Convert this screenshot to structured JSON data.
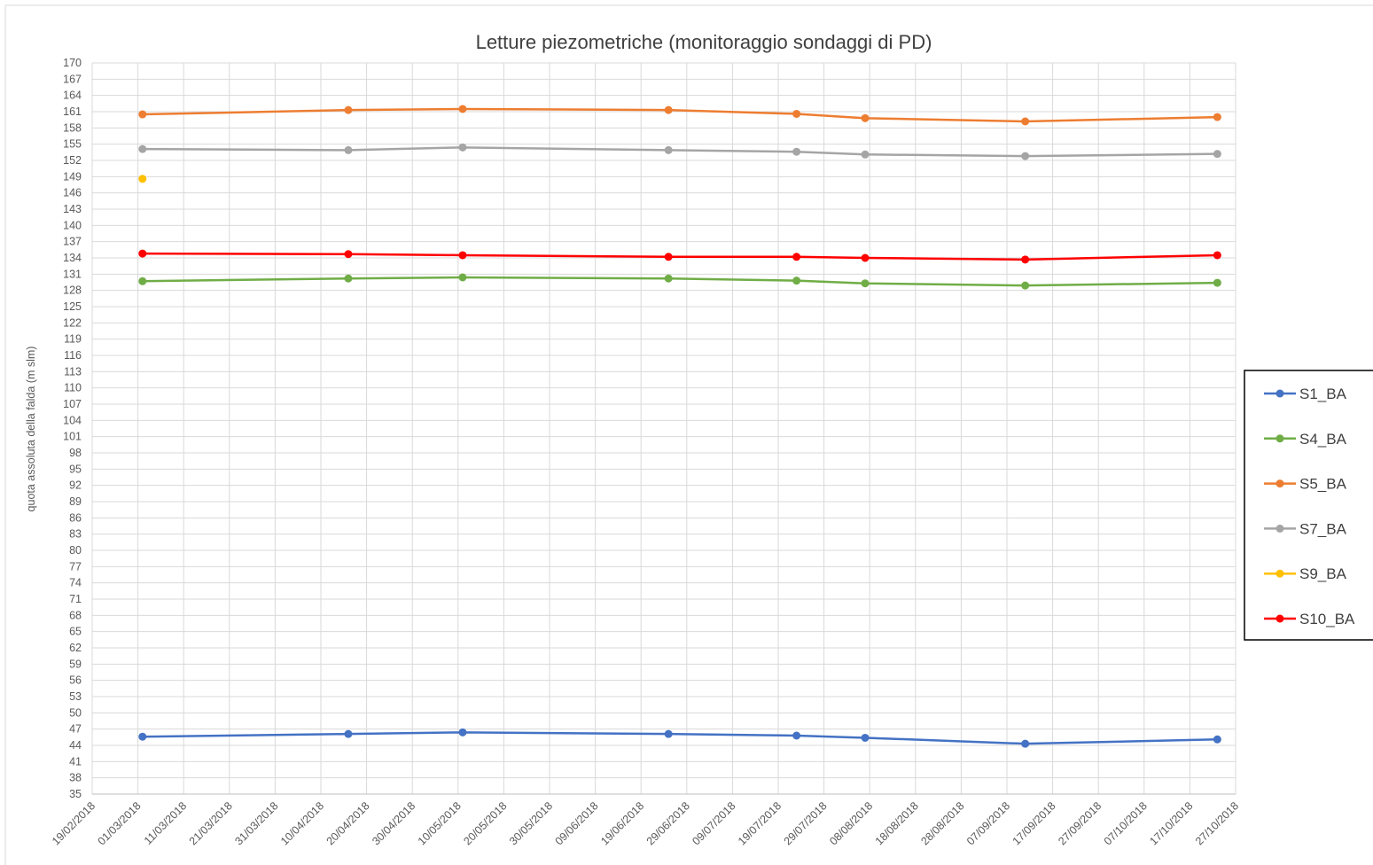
{
  "chart_data": {
    "type": "line",
    "title": "Letture piezometriche (monitoraggio sondaggi di PD)",
    "y_label": "quota assoluta della falda (m slm)",
    "x": [
      "02/03/2018",
      "16/04/2018",
      "11/05/2018",
      "25/06/2018",
      "23/07/2018",
      "07/08/2018",
      "11/09/2018",
      "23/10/2018"
    ],
    "series": [
      {
        "name": "S1_BA",
        "color": "#4472c4",
        "values": [
          45.6,
          46.1,
          46.4,
          46.1,
          45.8,
          45.4,
          44.3,
          45.1
        ]
      },
      {
        "name": "S4_BA",
        "color": "#70ad47",
        "values": [
          129.7,
          130.2,
          130.4,
          130.2,
          129.8,
          129.3,
          128.9,
          129.4
        ]
      },
      {
        "name": "S5_BA",
        "color": "#ed7d31",
        "values": [
          160.5,
          161.3,
          161.5,
          161.3,
          160.6,
          159.8,
          159.2,
          160.0
        ]
      },
      {
        "name": "S7_BA",
        "color": "#a5a5a5",
        "values": [
          154.1,
          153.9,
          154.4,
          153.9,
          153.6,
          153.1,
          152.8,
          153.2
        ]
      },
      {
        "name": "S9_BA",
        "color": "#ffc000",
        "values": [
          148.6,
          null,
          null,
          null,
          null,
          null,
          null,
          null
        ]
      },
      {
        "name": "S10_BA",
        "color": "#ff0000",
        "values": [
          134.8,
          134.7,
          134.5,
          134.2,
          134.2,
          134.0,
          133.7,
          134.5
        ]
      }
    ],
    "xlim": [
      "19/02/2018",
      "27/10/2018"
    ],
    "xticks": [
      "19/02/2018",
      "01/03/2018",
      "11/03/2018",
      "21/03/2018",
      "31/03/2018",
      "10/04/2018",
      "20/04/2018",
      "30/04/2018",
      "10/05/2018",
      "20/05/2018",
      "30/05/2018",
      "09/06/2018",
      "19/06/2018",
      "29/06/2018",
      "09/07/2018",
      "19/07/2018",
      "29/07/2018",
      "08/08/2018",
      "18/08/2018",
      "28/08/2018",
      "07/09/2018",
      "17/09/2018",
      "27/09/2018",
      "07/10/2018",
      "17/10/2018",
      "27/10/2018"
    ],
    "ylim": [
      35,
      170
    ],
    "yticks": [
      35,
      38,
      41,
      44,
      47,
      50,
      53,
      56,
      59,
      62,
      65,
      68,
      71,
      74,
      77,
      80,
      83,
      86,
      89,
      92,
      95,
      98,
      101,
      104,
      107,
      110,
      113,
      116,
      119,
      122,
      125,
      128,
      131,
      134,
      137,
      140,
      143,
      146,
      149,
      152,
      155,
      158,
      161,
      164,
      167,
      170
    ],
    "grid": true,
    "legend": "right"
  }
}
